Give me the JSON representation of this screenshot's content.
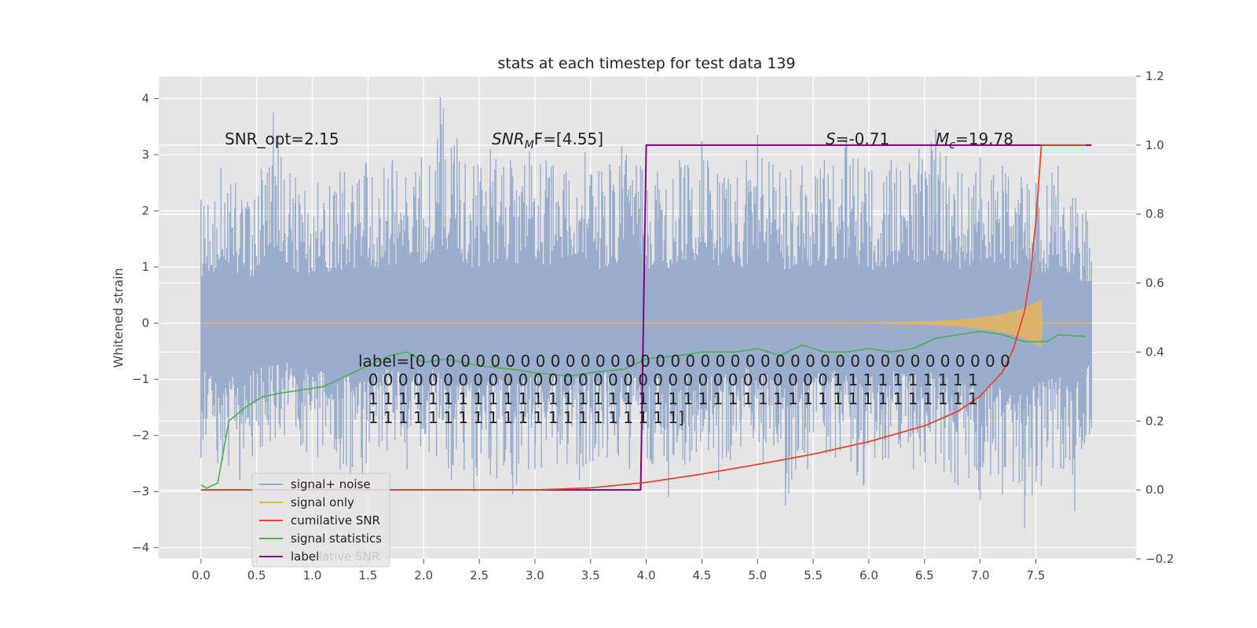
{
  "chart_data": {
    "type": "line",
    "title": "stats at each timestep for test data 139",
    "ylabel": "Whitened strain",
    "y2label": "",
    "xlim": [
      -0.38,
      8.4
    ],
    "ylim": [
      -4.2,
      4.4
    ],
    "y2lim": [
      -0.2,
      1.2
    ],
    "x_ticks": [
      0.0,
      0.5,
      1.0,
      1.5,
      2.0,
      2.5,
      3.0,
      3.5,
      4.0,
      4.5,
      5.0,
      5.5,
      6.0,
      6.5,
      7.0,
      7.5
    ],
    "x_tick_labels": [
      "0.0",
      "0.5",
      "1.0",
      "1.5",
      "2.0",
      "2.5",
      "3.0",
      "3.5",
      "4.0",
      "4.5",
      "5.0",
      "5.5",
      "6.0",
      "6.5",
      "7.0",
      "7.5"
    ],
    "y_ticks": [
      -4,
      -3,
      -2,
      -1,
      0,
      1,
      2,
      3,
      4
    ],
    "y_tick_labels": [
      "−4",
      "−3",
      "−2",
      "−1",
      "0",
      "1",
      "2",
      "3",
      "4"
    ],
    "y2_ticks": [
      -0.2,
      0.0,
      0.2,
      0.4,
      0.6,
      0.8,
      1.0,
      1.2
    ],
    "y2_tick_labels": [
      "−0.2",
      "0.0",
      "0.2",
      "0.4",
      "0.6",
      "0.8",
      "1.0",
      "1.2"
    ],
    "grid": true,
    "legend_placement": "lower-left",
    "legend": [
      "signal+ noise",
      "signal only",
      "cumilative SNR",
      "signal statistics",
      "label"
    ],
    "legend_overlap_text": "lative SNR",
    "colors": {
      "noise": "#9aadcc",
      "noise_band": "#97abca",
      "signal": "#e8b45a",
      "cumulative_snr": "#e8452c",
      "statistics": "#4caf50",
      "label": "#800080",
      "axes_bg": "#e5e5e5",
      "grid": "#ffffff"
    },
    "series": [
      {
        "name": "signal+ noise",
        "axis": "left",
        "core_band": [
          -0.45,
          0.75
        ],
        "x_range": [
          0.0,
          8.0
        ],
        "peaks_up": [
          [
            0.0,
            2.2
          ],
          [
            0.18,
            2.75
          ],
          [
            0.31,
            2.5
          ],
          [
            0.48,
            2.2
          ],
          [
            0.65,
            3.75
          ],
          [
            0.85,
            2.6
          ],
          [
            1.05,
            2.5
          ],
          [
            1.25,
            2.7
          ],
          [
            1.48,
            2.85
          ],
          [
            1.72,
            2.9
          ],
          [
            1.98,
            2.95
          ],
          [
            2.15,
            4.02
          ],
          [
            2.3,
            3.3
          ],
          [
            2.45,
            2.8
          ],
          [
            2.6,
            3.1
          ],
          [
            2.78,
            2.9
          ],
          [
            2.95,
            3.05
          ],
          [
            3.1,
            2.9
          ],
          [
            3.28,
            2.7
          ],
          [
            3.45,
            3.05
          ],
          [
            3.6,
            2.7
          ],
          [
            3.78,
            3.15
          ],
          [
            3.95,
            2.8
          ],
          [
            4.1,
            2.7
          ],
          [
            4.3,
            2.9
          ],
          [
            4.5,
            3.25
          ],
          [
            4.7,
            2.6
          ],
          [
            4.9,
            2.9
          ],
          [
            5.0,
            3.35
          ],
          [
            5.2,
            2.7
          ],
          [
            5.4,
            2.8
          ],
          [
            5.6,
            2.9
          ],
          [
            5.8,
            3.3
          ],
          [
            6.0,
            2.7
          ],
          [
            6.2,
            2.9
          ],
          [
            6.45,
            3.1
          ],
          [
            6.6,
            3.45
          ],
          [
            6.8,
            2.7
          ],
          [
            7.0,
            2.95
          ],
          [
            7.2,
            2.8
          ],
          [
            7.5,
            2.5
          ],
          [
            7.7,
            2.8
          ],
          [
            7.95,
            2.0
          ]
        ],
        "peaks_down": [
          [
            0.0,
            -2.4
          ],
          [
            0.15,
            -2.5
          ],
          [
            0.35,
            -2.8
          ],
          [
            0.55,
            -2.2
          ],
          [
            0.75,
            -2.0
          ],
          [
            0.95,
            -2.3
          ],
          [
            1.25,
            -2.6
          ],
          [
            1.45,
            -2.9
          ],
          [
            1.6,
            -2.2
          ],
          [
            1.85,
            -2.6
          ],
          [
            2.05,
            -2.3
          ],
          [
            2.25,
            -2.8
          ],
          [
            2.45,
            -3.0
          ],
          [
            2.6,
            -2.7
          ],
          [
            2.8,
            -3.05
          ],
          [
            3.0,
            -2.6
          ],
          [
            3.2,
            -2.5
          ],
          [
            3.4,
            -2.8
          ],
          [
            3.65,
            -2.4
          ],
          [
            3.85,
            -2.6
          ],
          [
            4.05,
            -2.5
          ],
          [
            4.2,
            -3.1
          ],
          [
            4.45,
            -2.3
          ],
          [
            4.65,
            -2.8
          ],
          [
            4.85,
            -2.2
          ],
          [
            5.05,
            -2.5
          ],
          [
            5.25,
            -3.25
          ],
          [
            5.45,
            -2.6
          ],
          [
            5.7,
            -2.4
          ],
          [
            5.95,
            -2.9
          ],
          [
            6.15,
            -2.4
          ],
          [
            6.4,
            -2.6
          ],
          [
            6.6,
            -2.5
          ],
          [
            6.8,
            -2.9
          ],
          [
            7.0,
            -3.15
          ],
          [
            7.2,
            -3.05
          ],
          [
            7.4,
            -3.65
          ],
          [
            7.55,
            -2.9
          ],
          [
            7.75,
            -2.6
          ],
          [
            7.85,
            -3.35
          ],
          [
            7.95,
            -2.0
          ]
        ]
      },
      {
        "name": "signal only",
        "axis": "left",
        "x": [
          0.0,
          6.0,
          6.5,
          6.8,
          7.0,
          7.2,
          7.35,
          7.45,
          7.5,
          7.55,
          7.56,
          8.0
        ],
        "envelope": [
          0.0,
          0.01,
          0.03,
          0.06,
          0.1,
          0.16,
          0.24,
          0.32,
          0.38,
          0.42,
          0.0,
          0.0
        ]
      },
      {
        "name": "cumilative SNR",
        "axis": "right",
        "x": [
          0.0,
          3.0,
          3.5,
          4.0,
          4.5,
          5.0,
          5.5,
          6.0,
          6.5,
          6.8,
          7.0,
          7.2,
          7.3,
          7.4,
          7.45,
          7.5,
          7.55,
          7.6,
          7.95
        ],
        "y": [
          0.0,
          0.0,
          0.006,
          0.022,
          0.046,
          0.074,
          0.104,
          0.14,
          0.186,
          0.228,
          0.272,
          0.342,
          0.41,
          0.52,
          0.62,
          0.78,
          1.0,
          1.0,
          1.0
        ]
      },
      {
        "name": "signal statistics",
        "axis": "right",
        "x": [
          0.0,
          0.05,
          0.15,
          0.25,
          0.4,
          0.55,
          0.7,
          0.9,
          1.1,
          1.3,
          1.5,
          1.7,
          1.85,
          2.0,
          2.2,
          2.5,
          2.8,
          3.0,
          3.3,
          3.5,
          3.8,
          4.0,
          4.3,
          4.5,
          4.8,
          5.0,
          5.2,
          5.4,
          5.6,
          5.8,
          6.0,
          6.2,
          6.4,
          6.6,
          6.8,
          7.0,
          7.2,
          7.4,
          7.6,
          7.7,
          7.95
        ],
        "y": [
          0.015,
          0.005,
          0.02,
          0.2,
          0.24,
          0.27,
          0.28,
          0.29,
          0.3,
          0.33,
          0.36,
          0.39,
          0.4,
          0.37,
          0.38,
          0.36,
          0.35,
          0.34,
          0.33,
          0.34,
          0.35,
          0.38,
          0.39,
          0.4,
          0.4,
          0.41,
          0.39,
          0.42,
          0.4,
          0.4,
          0.41,
          0.4,
          0.41,
          0.44,
          0.45,
          0.46,
          0.45,
          0.43,
          0.43,
          0.45,
          0.445
        ]
      },
      {
        "name": "label",
        "axis": "right",
        "x": [
          0.0,
          3.95,
          4.0,
          8.0
        ],
        "y": [
          0.0,
          0.0,
          1.0,
          1.0
        ]
      }
    ],
    "annotations": {
      "snr_opt": "SNR_opt=2.15",
      "snr_mf_main": "SNR",
      "snr_mf_sub": "M",
      "snr_mf_rest": "F=[4.55]",
      "s_var": "S",
      "s_rest": "=-0.71",
      "mc_var": "M",
      "mc_sub": "c",
      "mc_rest": "=19.78",
      "label_lines": [
        "label=[0 0 0 0 0 0 0 0 0 0 0 0 0 0 0 0 0 0 0 0 0 0 0 0 0 0 0 0 0 0 0 0 0 0 0 0 0 0 0 0",
        "  0 0 0 0 0 0 0 0 0 0 0 0 0 0 0 0 0 0 0 0 0 0 0 0 0 0 0 0 0 0 0 1 1 1 1 1 1 1 1 1 1",
        "  1 1 1 1 1 1 1 1 1 1 1 1 1 1 1 1 1 1 1 1 1 1 1 1 1 1 1 1 1 1 1 1 1 1 1 1 1 1 1 1 1",
        "  1 1 1 1 1 1 1 1 1 1 1 1 1 1 1 1 1 1 1 1 1]"
      ]
    }
  }
}
